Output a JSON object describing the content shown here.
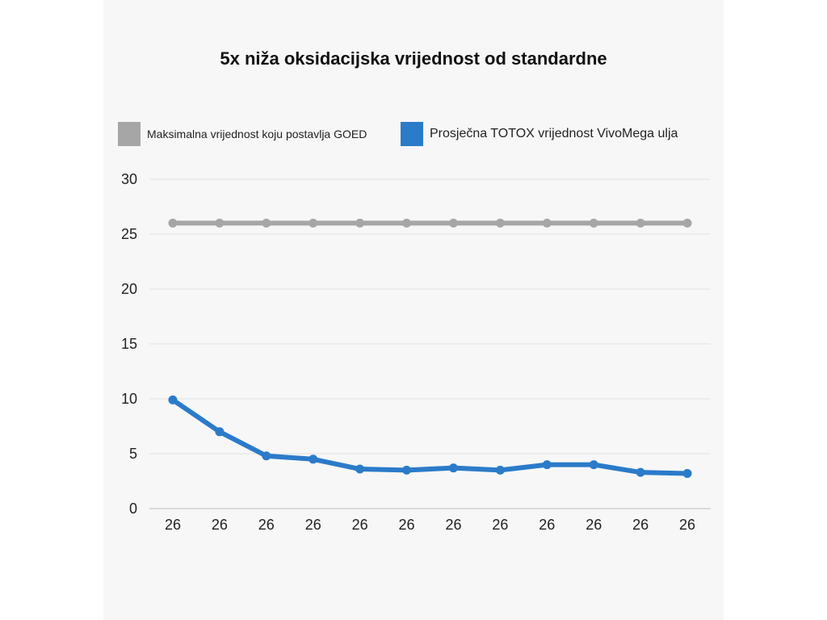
{
  "chart_data": {
    "type": "line",
    "title": "5x niža oksidacijska vrijednost od standardne",
    "categories": [
      "26",
      "26",
      "26",
      "26",
      "26",
      "26",
      "26",
      "26",
      "26",
      "26",
      "26",
      "26"
    ],
    "series": [
      {
        "name": "Maksimalna vrijednost koju postavlja GOED",
        "color": "#a6a6a6",
        "values": [
          26,
          26,
          26,
          26,
          26,
          26,
          26,
          26,
          26,
          26,
          26,
          26
        ]
      },
      {
        "name": "Prosječna TOTOX vrijednost VivoMega ulja",
        "color": "#2b7bc9",
        "values": [
          9.9,
          7.0,
          4.8,
          4.5,
          3.6,
          3.5,
          3.7,
          3.5,
          4.0,
          4.0,
          3.3,
          3.2
        ]
      }
    ],
    "yticks": [
      "0",
      "5",
      "10",
      "15",
      "20",
      "25",
      "30"
    ],
    "ylim": [
      0,
      30
    ],
    "xlabel": "",
    "ylabel": "",
    "grid": true,
    "legend_position": "top"
  }
}
